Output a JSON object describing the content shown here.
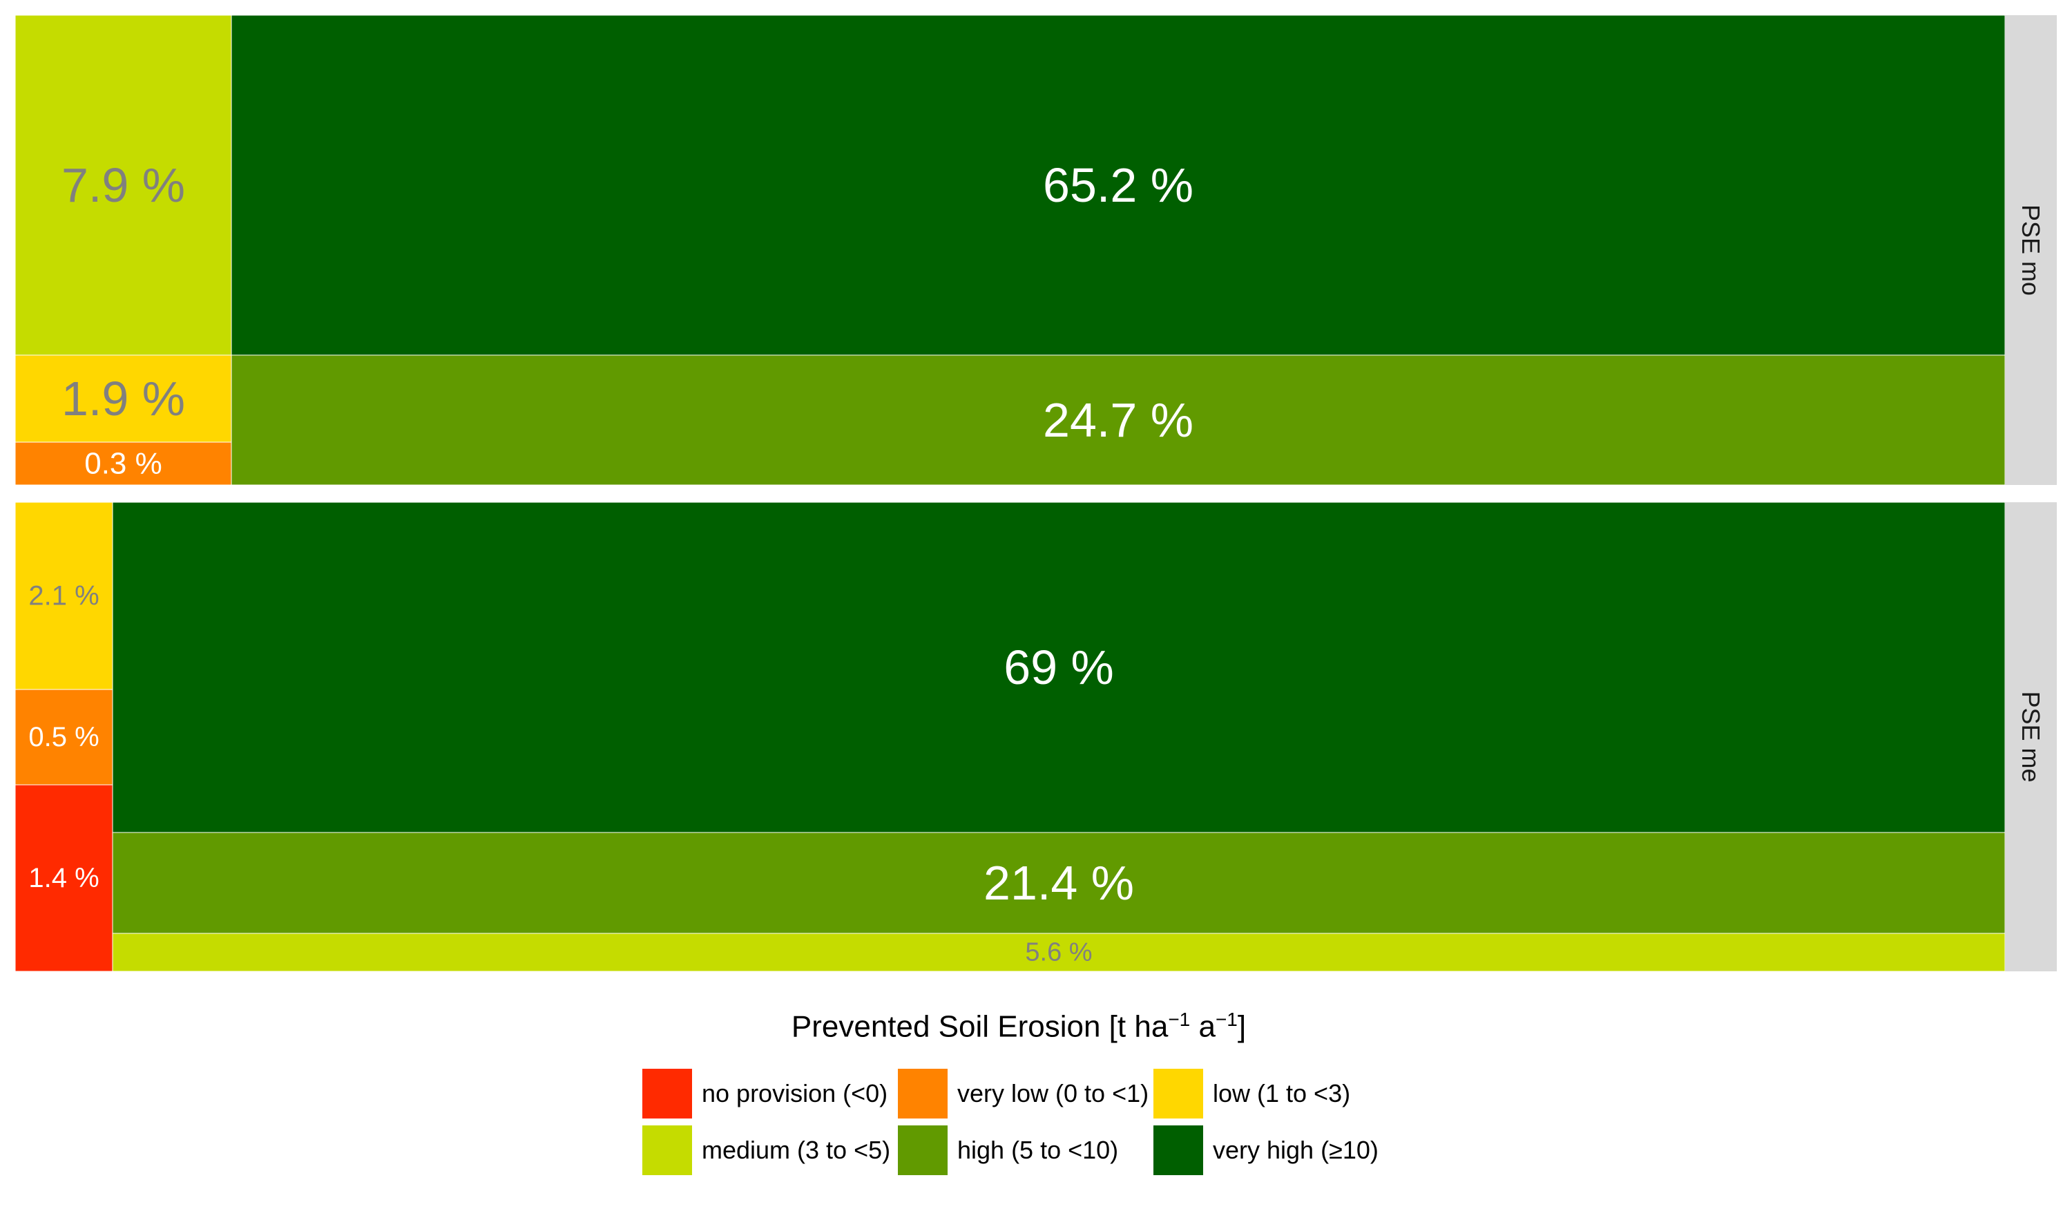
{
  "chart_data": {
    "type": "treemap",
    "legend": {
      "title_main": "Prevented Soil Erosion [t ha",
      "title_sup1": "−1",
      "title_mid": " a",
      "title_sup2": "−1",
      "title_end": "]",
      "items": [
        {
          "label": "no provision (<0)",
          "color": "#FF2A00"
        },
        {
          "label": "very low (0 to <1)",
          "color": "#FF8300"
        },
        {
          "label": "low (1 to <3)",
          "color": "#FFD700"
        },
        {
          "label": "medium (3 to <5)",
          "color": "#C5DC00"
        },
        {
          "label": "high (5 to <10)",
          "color": "#619A00"
        },
        {
          "label": "very high (≥10)",
          "color": "#005F00"
        }
      ]
    },
    "panels": [
      {
        "strip_label": "PSE mo",
        "cells": [
          {
            "category": "very high (≥10)",
            "value": 65.2,
            "label": "65.2 %"
          },
          {
            "category": "high (5 to <10)",
            "value": 24.7,
            "label": "24.7 %"
          },
          {
            "category": "medium (3 to <5)",
            "value": 7.9,
            "label": "7.9 %"
          },
          {
            "category": "low (1 to <3)",
            "value": 1.9,
            "label": "1.9 %"
          },
          {
            "category": "very low (0 to <1)",
            "value": 0.3,
            "label": "0.3 %"
          }
        ]
      },
      {
        "strip_label": "PSE me",
        "cells": [
          {
            "category": "very high (≥10)",
            "value": 69,
            "label": "69 %"
          },
          {
            "category": "high (5 to <10)",
            "value": 21.4,
            "label": "21.4 %"
          },
          {
            "category": "medium (3 to <5)",
            "value": 5.6,
            "label": "5.6 %"
          },
          {
            "category": "low (1 to <3)",
            "value": 2.1,
            "label": "2.1 %"
          },
          {
            "category": "very low (0 to <1)",
            "value": 0.5,
            "label": "0.5 %"
          },
          {
            "category": "no provision (<0)",
            "value": 1.4,
            "label": "1.4 %"
          }
        ]
      }
    ]
  }
}
